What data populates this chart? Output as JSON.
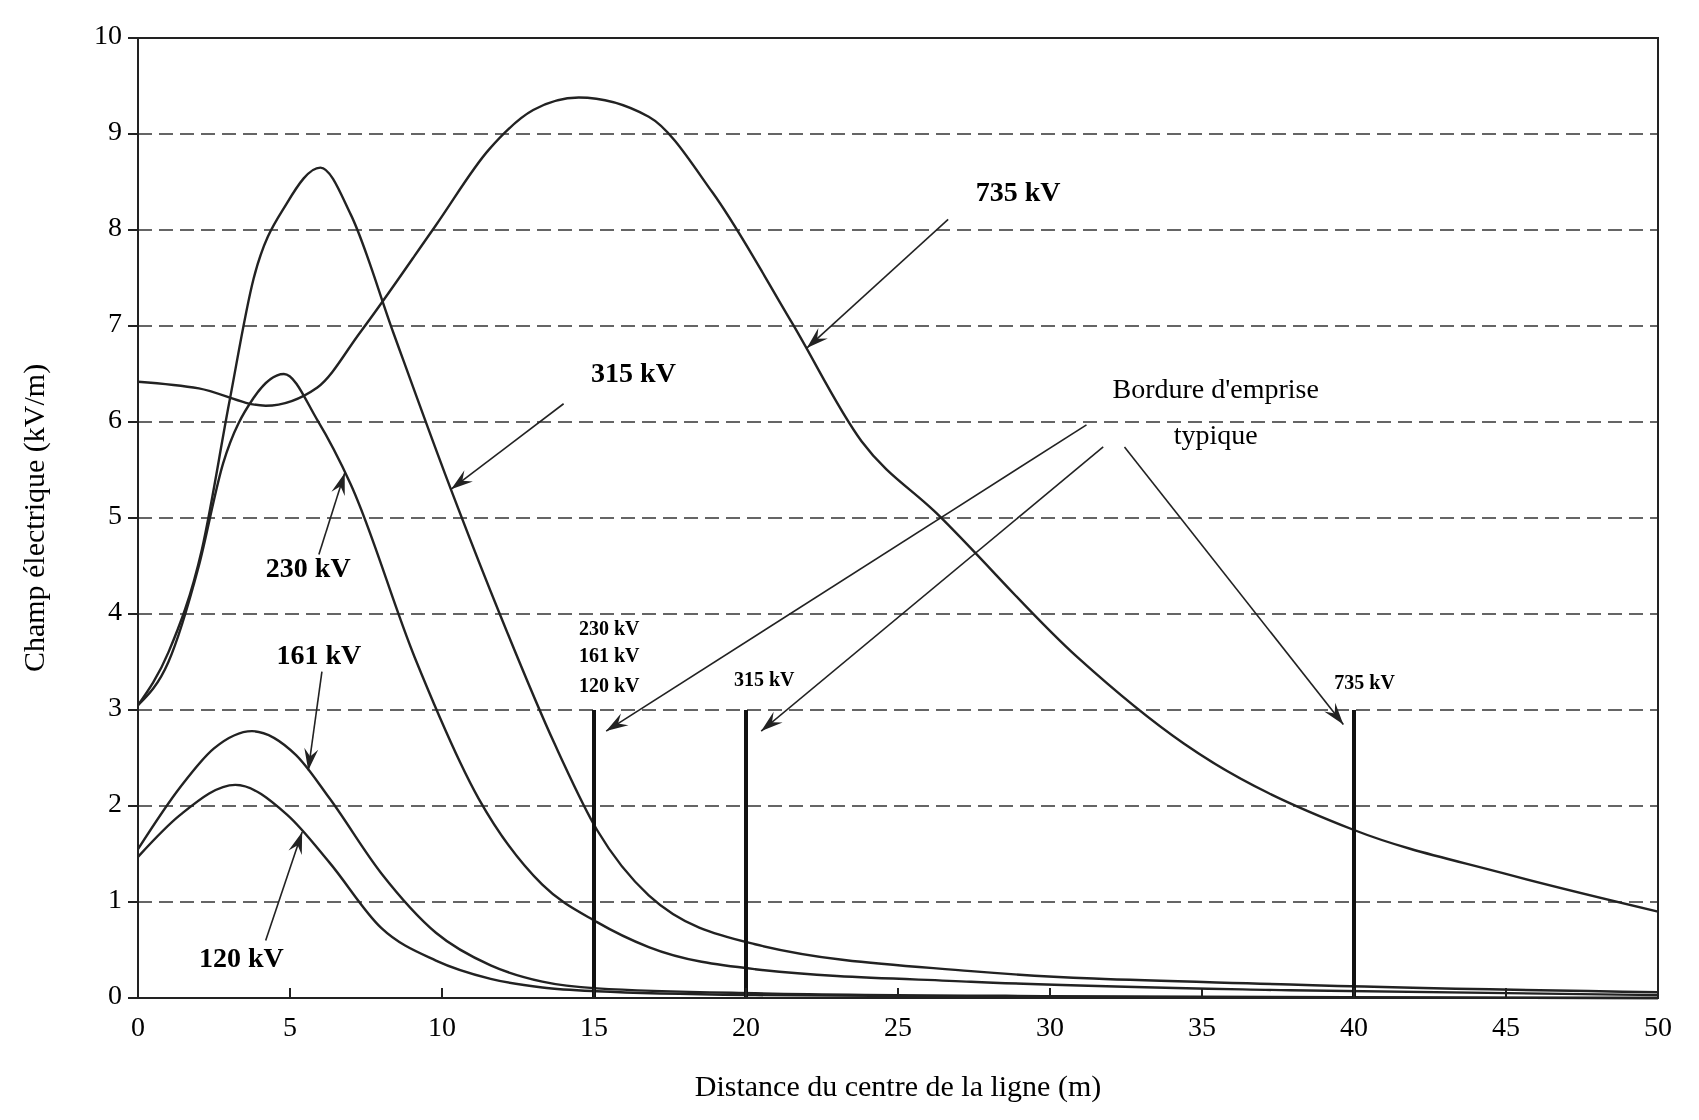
{
  "chart_data": {
    "type": "line",
    "xlabel": "Distance du centre de la ligne (m)",
    "ylabel": "Champ électrique (kV/m)",
    "xlim": [
      0,
      50
    ],
    "ylim": [
      0,
      10
    ],
    "xticks": [
      0,
      5,
      10,
      15,
      20,
      25,
      30,
      35,
      40,
      45,
      50
    ],
    "yticks": [
      0,
      1,
      2,
      3,
      4,
      5,
      6,
      7,
      8,
      9,
      10
    ],
    "grid": "y",
    "line_style": "solid",
    "series": [
      {
        "color": "#222222",
        "x": [
          0,
          2,
          4.2,
          5.9,
          7.3,
          9.8,
          11.55,
          13,
          14.5,
          16.8,
          18.9,
          21.5,
          23.8,
          26.3,
          30.9,
          34.4,
          40,
          44.9,
          50
        ],
        "values": [
          6.42,
          6.35,
          6.17,
          6.36,
          6.93,
          8.05,
          8.84,
          9.25,
          9.38,
          9.18,
          8.39,
          7.04,
          5.8,
          5.04,
          3.55,
          2.65,
          1.75,
          1.3,
          0.9
        ]
      },
      {
        "color": "#222222",
        "x": [
          0,
          1,
          2.1,
          3,
          3.8,
          4.9,
          6,
          7,
          8.4,
          10.1,
          11.9,
          13.7,
          15.1,
          16.8,
          20.3,
          27.4,
          37.9,
          50
        ],
        "values": [
          3.05,
          3.6,
          4.67,
          6.2,
          7.49,
          8.28,
          8.65,
          8.16,
          6.93,
          5.46,
          4,
          2.65,
          1.75,
          1.07,
          0.56,
          0.28,
          0.14,
          0.06
        ]
      },
      {
        "color": "#222222",
        "x": [
          0,
          1,
          2,
          2.8,
          3.8,
          4.8,
          5.9,
          7,
          9.1,
          11.2,
          13.3,
          15.1,
          16.8,
          20.3,
          27.4,
          37.9,
          50
        ],
        "values": [
          3.05,
          3.5,
          4.5,
          5.57,
          6.25,
          6.5,
          6.02,
          5.35,
          3.55,
          2.08,
          1.18,
          0.79,
          0.53,
          0.3,
          0.17,
          0.08,
          0.03
        ]
      },
      {
        "color": "#222222",
        "x": [
          0,
          1.4,
          2.5,
          3.75,
          5.2,
          6.3,
          8,
          9.8,
          11.6,
          13.3,
          15.1,
          20.3,
          30,
          50
        ],
        "values": [
          1.55,
          2.2,
          2.6,
          2.78,
          2.53,
          2.08,
          1.3,
          0.68,
          0.34,
          0.17,
          0.1,
          0.05,
          0.02,
          0
        ]
      },
      {
        "color": "#222222",
        "x": [
          0,
          1.4,
          3.2,
          4.9,
          6.3,
          8,
          9.8,
          11.6,
          13.3,
          15.1,
          20.3,
          30,
          50
        ],
        "values": [
          1.47,
          1.91,
          2.22,
          1.91,
          1.41,
          0.73,
          0.39,
          0.2,
          0.11,
          0.07,
          0.03,
          0.01,
          0
        ]
      },
      {
        "color": "#111111",
        "x": [
          15,
          15
        ],
        "values": [
          0,
          3
        ]
      },
      {
        "color": "#111111",
        "x": [
          20,
          20
        ],
        "values": [
          0,
          3
        ]
      },
      {
        "color": "#111111",
        "x": [
          40,
          40
        ],
        "values": [
          0,
          3
        ]
      }
    ],
    "annotations": [
      {
        "text": "735 kV",
        "x": 22,
        "y": 6.77
      },
      {
        "text": "315 kV",
        "x": 10.3,
        "y": 5.3
      },
      {
        "text": "230 kV",
        "x": 6.8,
        "y": 5.47
      },
      {
        "text": "161 kV",
        "x": 5.6,
        "y": 2.37
      },
      {
        "text": "120 kV",
        "x": 5.4,
        "y": 1.73
      },
      "230 kV",
      "161 kV",
      "120 kV",
      "315 kV",
      "735 kV",
      "Bordure d'emprise typique"
    ]
  }
}
